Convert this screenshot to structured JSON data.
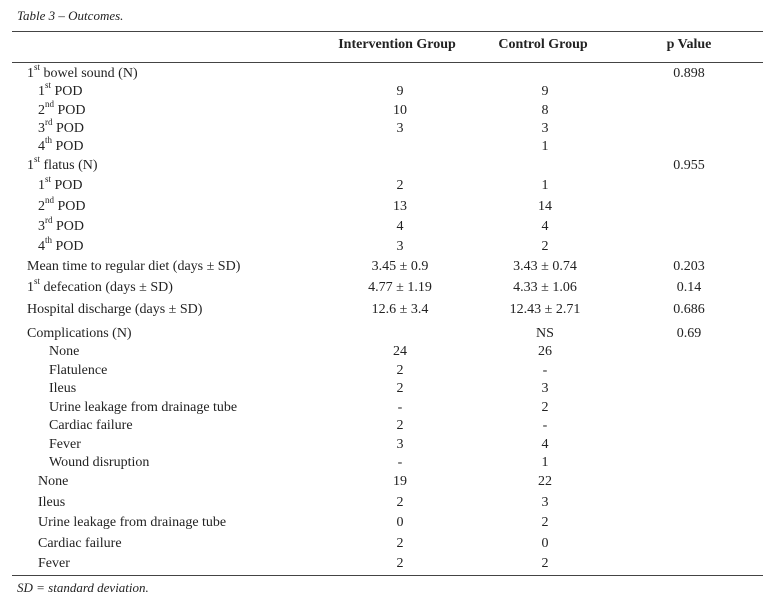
{
  "caption": "Table 3 – Outcomes.",
  "headers": {
    "intervention": "Intervention Group",
    "control": "Control Group",
    "p_value": "p Value"
  },
  "rows": [
    {
      "pre": "1",
      "sup": "st",
      "post": " bowel sound (N)",
      "c1": "",
      "c2": "",
      "c3": "0.898"
    },
    {
      "pre": "1",
      "sup": "st",
      "post": " POD",
      "c1": "9",
      "c2": "9",
      "c3": ""
    },
    {
      "pre": "2",
      "sup": "nd",
      "post": " POD",
      "c1": "10",
      "c2": "8",
      "c3": ""
    },
    {
      "pre": "3",
      "sup": "rd",
      "post": " POD",
      "c1": "3",
      "c2": "3",
      "c3": ""
    },
    {
      "pre": "4",
      "sup": "th",
      "post": " POD",
      "c1": "",
      "c2": "1",
      "c3": ""
    },
    {
      "pre": "1",
      "sup": "st",
      "post": " flatus (N)",
      "c1": "",
      "c2": "",
      "c3": "0.955"
    },
    {
      "pre": "1",
      "sup": "st",
      "post": " POD",
      "c1": "2",
      "c2": "1",
      "c3": ""
    },
    {
      "pre": "2",
      "sup": "nd",
      "post": " POD",
      "c1": "13",
      "c2": "14",
      "c3": ""
    },
    {
      "pre": "3",
      "sup": "rd",
      "post": " POD",
      "c1": "4",
      "c2": "4",
      "c3": ""
    },
    {
      "pre": "4",
      "sup": "th",
      "post": " POD",
      "c1": "3",
      "c2": "2",
      "c3": ""
    },
    {
      "pre": "Mean time to regular diet (days ± SD)",
      "sup": "",
      "post": "",
      "c1": "3.45 ± 0.9",
      "c2": "3.43 ± 0.74",
      "c3": "0.203"
    },
    {
      "pre": "1",
      "sup": "st",
      "post": " defecation (days ± SD)",
      "c1": "4.77 ± 1.19",
      "c2": "4.33 ± 1.06",
      "c3": "0.14"
    },
    {
      "pre": "Hospital discharge (days ± SD)",
      "sup": "",
      "post": "",
      "c1": "12.6 ± 3.4",
      "c2": "12.43 ± 2.71",
      "c3": "0.686"
    },
    {
      "pre": "Complications (N)",
      "sup": "",
      "post": "",
      "c1": "",
      "c2": "NS",
      "c3": "0.69"
    },
    {
      "pre": "None",
      "sup": "",
      "post": "",
      "c1": "24",
      "c2": "26",
      "c3": ""
    },
    {
      "pre": "Flatulence",
      "sup": "",
      "post": "",
      "c1": "2",
      "c2": "-",
      "c3": ""
    },
    {
      "pre": "Ileus",
      "sup": "",
      "post": "",
      "c1": "2",
      "c2": "3",
      "c3": ""
    },
    {
      "pre": "Urine leakage from drainage tube",
      "sup": "",
      "post": "",
      "c1": "-",
      "c2": "2",
      "c3": ""
    },
    {
      "pre": "Cardiac failure",
      "sup": "",
      "post": "",
      "c1": "2",
      "c2": "-",
      "c3": ""
    },
    {
      "pre": "Fever",
      "sup": "",
      "post": "",
      "c1": "3",
      "c2": "4",
      "c3": ""
    },
    {
      "pre": "Wound disruption",
      "sup": "",
      "post": "",
      "c1": "-",
      "c2": "1",
      "c3": ""
    },
    {
      "pre": "None",
      "sup": "",
      "post": "",
      "c1": "19",
      "c2": "22",
      "c3": ""
    },
    {
      "pre": "Ileus",
      "sup": "",
      "post": "",
      "c1": "2",
      "c2": "3",
      "c3": ""
    },
    {
      "pre": "Urine leakage from drainage tube",
      "sup": "",
      "post": "",
      "c1": "0",
      "c2": "2",
      "c3": ""
    },
    {
      "pre": "Cardiac failure",
      "sup": "",
      "post": "",
      "c1": "2",
      "c2": "0",
      "c3": ""
    },
    {
      "pre": "Fever",
      "sup": "",
      "post": "",
      "c1": "2",
      "c2": "2",
      "c3": ""
    }
  ],
  "footnote": "SD = standard deviation."
}
